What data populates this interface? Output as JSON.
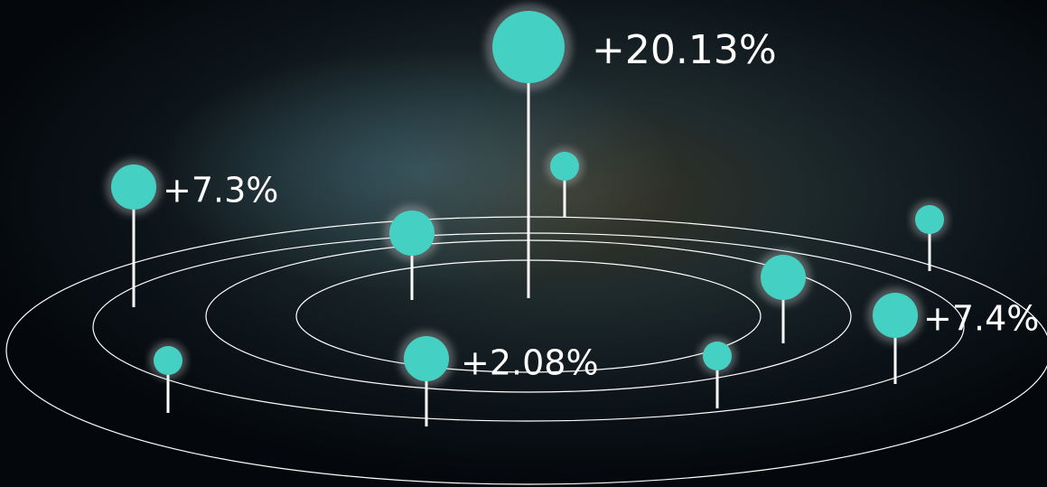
{
  "labels": [
    "+20.13%",
    "+7.3%",
    "+2.08%",
    "+7.4%"
  ]
}
